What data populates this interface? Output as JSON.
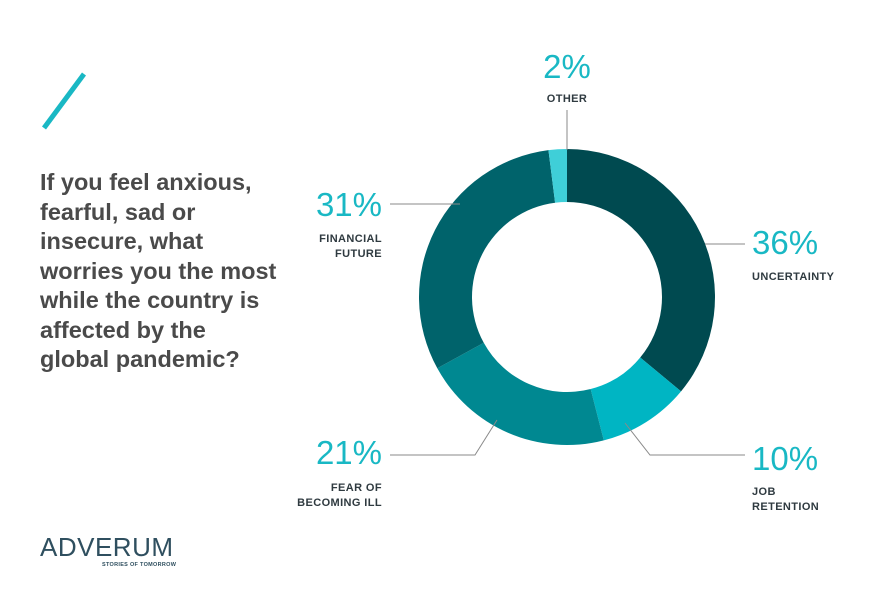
{
  "question": "If you feel anxious, fearful, sad or insecure, what worries you the most while the country is affected by the global pandemic?",
  "logo": {
    "word": "ADVERUM",
    "tagline": "STORIES OF TOMORROW"
  },
  "colors": {
    "accent": "#19b8c4",
    "uncertainty": "#004a50",
    "job_retention": "#00b5c3",
    "fear_of_becoming_ill": "#008891",
    "financial_future": "#00636b",
    "other": "#3fcfd8"
  },
  "chart_data": {
    "type": "pie",
    "donut": true,
    "title": "",
    "slices": [
      {
        "label": "UNCERTAINTY",
        "label_lines": [
          "UNCERTAINTY"
        ],
        "value": 36,
        "value_label": "36%",
        "color": "#004a50"
      },
      {
        "label": "JOB RETENTION",
        "label_lines": [
          "JOB",
          "RETENTION"
        ],
        "value": 10,
        "value_label": "10%",
        "color": "#00b5c3"
      },
      {
        "label": "FEAR OF BECOMING ILL",
        "label_lines": [
          "FEAR OF",
          "BECOMING ILL"
        ],
        "value": 21,
        "value_label": "21%",
        "color": "#008891"
      },
      {
        "label": "FINANCIAL FUTURE",
        "label_lines": [
          "FINANCIAL",
          "FUTURE"
        ],
        "value": 31,
        "value_label": "31%",
        "color": "#00636b"
      },
      {
        "label": "OTHER",
        "label_lines": [
          "OTHER"
        ],
        "value": 2,
        "value_label": "2%",
        "color": "#3fcfd8"
      }
    ]
  }
}
